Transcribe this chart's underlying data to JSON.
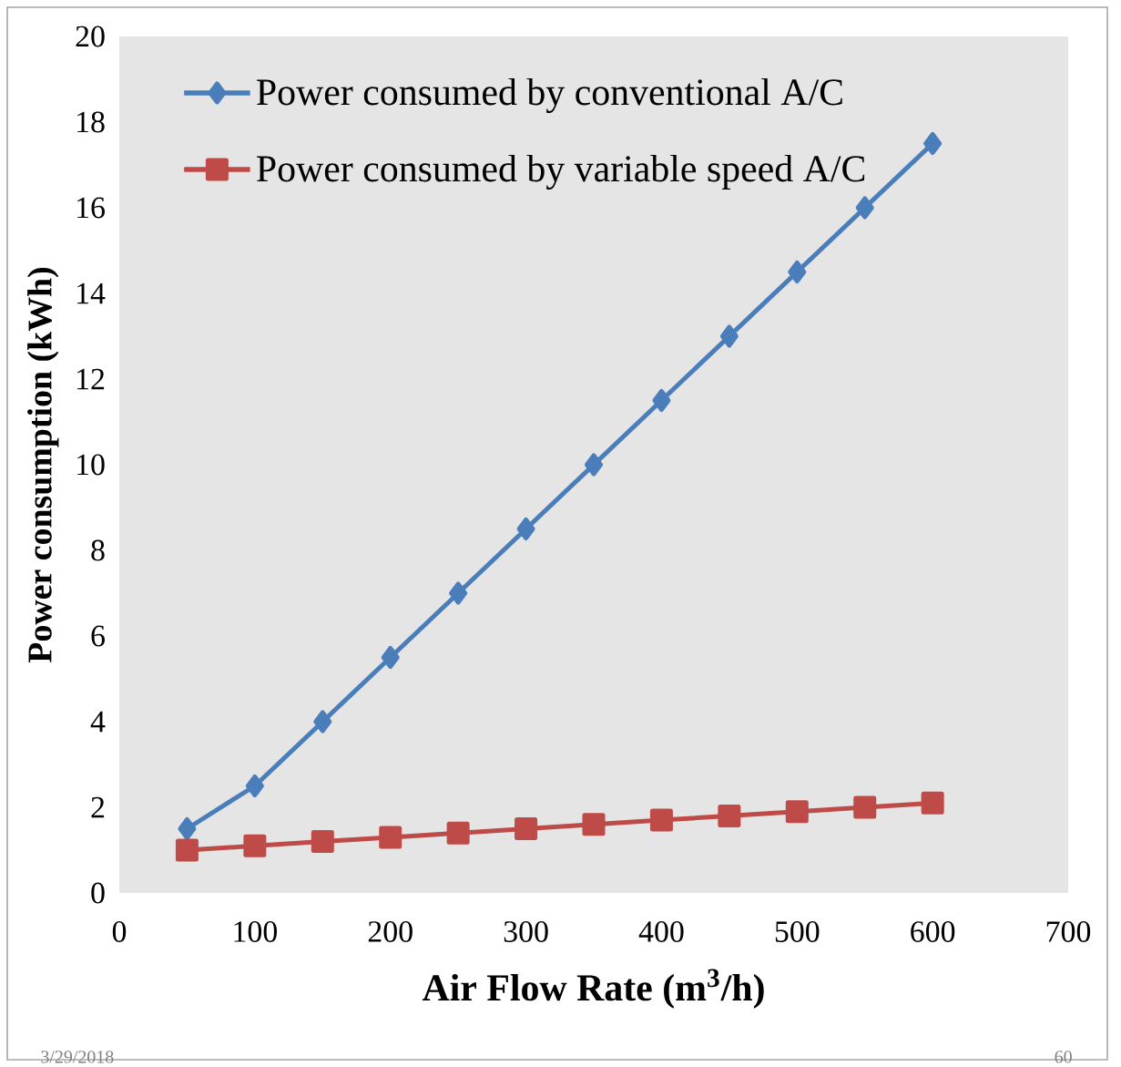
{
  "chart_data": {
    "type": "line",
    "xlabel": "Air Flow Rate (m$^{3}$/h)",
    "ylabel": "Power consumption  (kWh)",
    "x": [
      50,
      100,
      150,
      200,
      250,
      300,
      350,
      400,
      450,
      500,
      550,
      600
    ],
    "series": [
      {
        "name": "Power consumed by conventional A/C",
        "color": "#4a7ebb",
        "marker": "diamond",
        "values": [
          1.5,
          2.5,
          4,
          5.5,
          7,
          8.5,
          10,
          11.5,
          13,
          14.5,
          16,
          17.5
        ]
      },
      {
        "name": "Power consumed by variable speed A/C",
        "color": "#be4b48",
        "marker": "square",
        "values": [
          1.0,
          1.1,
          1.2,
          1.3,
          1.4,
          1.5,
          1.6,
          1.7,
          1.8,
          1.9,
          2.0,
          2.1
        ]
      }
    ],
    "xlim": [
      0,
      700
    ],
    "ylim": [
      0,
      20
    ],
    "xticks": [
      0,
      100,
      200,
      300,
      400,
      500,
      600,
      700
    ],
    "yticks": [
      0,
      2,
      4,
      6,
      8,
      10,
      12,
      14,
      16,
      18,
      20
    ],
    "legend": "top left",
    "grid": false,
    "line_style": "solid",
    "annotations": [
      "3/29/2018",
      "60"
    ]
  }
}
